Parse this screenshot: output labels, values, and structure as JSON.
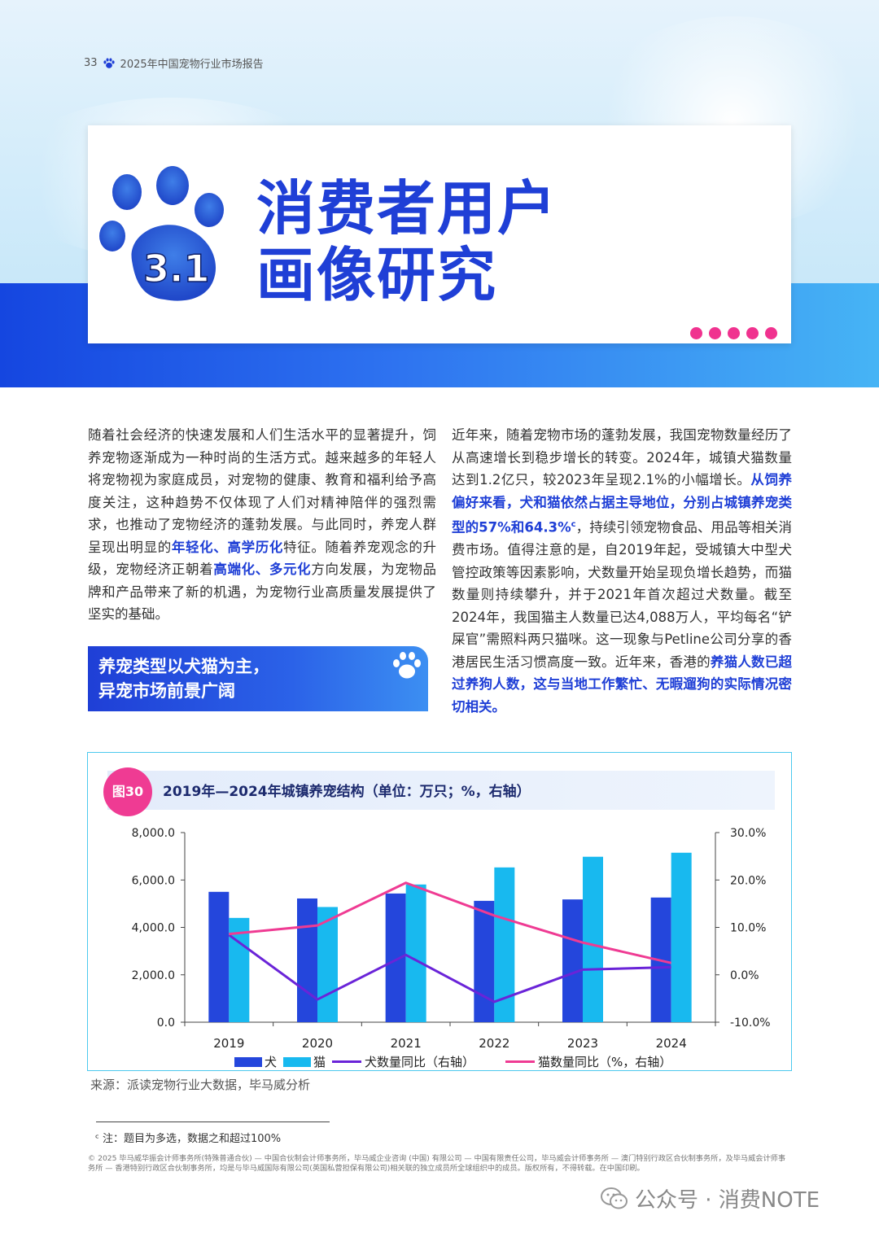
{
  "header": {
    "page_number": "33",
    "report_title": "2025年中国宠物行业市场报告"
  },
  "title": {
    "number": "3.1",
    "line1": "消费者用户",
    "line2": "画像研究"
  },
  "left_column": {
    "p1": "随着社会经济的快速发展和人们生活水平的显著提升，饲养宠物逐渐成为一种时尚的生活方式。越来越多的年轻人将宠物视为家庭成员，对宠物的健康、教育和福利给予高度关注，这种趋势不仅体现了人们对精神陪伴的强烈需求，也推动了宠物经济的蓬勃发展。与此同时，养宠人群呈现出明显的",
    "hl1": "年轻化、高学历化",
    "p2": "特征。随着养宠观念的升级，宠物经济正朝着",
    "hl2": "高端化、多元化",
    "p3": "方向发展，为宠物品牌和产品带来了新的机遇，为宠物行业高质量发展提供了坚实的基础。"
  },
  "section_box": {
    "line1": "养宠类型以犬猫为主，",
    "line2": "异宠市场前景广阔"
  },
  "right_column": {
    "p1": "近年来，随着宠物市场的蓬勃发展，我国宠物数量经历了从高速增长到稳步增长的转变。2024年，城镇犬猫数量达到1.2亿只，较2023年呈现2.1%的小幅增长。",
    "hl1": "从饲养偏好来看，犬和猫依然占据主导地位，分别占城镇养宠类型的57%和64.3%",
    "sup": "c",
    "p2": "，持续引领宠物食品、用品等相关消费市场。值得注意的是，自2019年起，受城镇大中型犬管控政策等因素影响，犬数量开始呈现负增长趋势，而猫数量则持续攀升，并于2021年首次超过犬数量。截至2024年，我国猫主人数量已达4,088万人，平均每名“铲屎官”需照料两只猫咪。这一现象与Petline公司分享的香港居民生活习惯高度一致。近年来，香港的",
    "hl2": "养猫人数已超过养狗人数，这与当地工作繁忙、无暇遛狗的实际情况密切相关。"
  },
  "figure": {
    "badge": "图30",
    "title": "2019年—2024年城镇养宠结构（单位：万只；%，右轴）"
  },
  "chart_data": {
    "type": "bar",
    "categories": [
      "2019",
      "2020",
      "2021",
      "2022",
      "2023",
      "2024"
    ],
    "series": [
      {
        "name": "犬",
        "kind": "bar",
        "axis": "left",
        "color": "#2446dc",
        "values": [
          5500,
          5220,
          5430,
          5120,
          5180,
          5260
        ]
      },
      {
        "name": "猫",
        "kind": "bar",
        "axis": "left",
        "color": "#18b9ef",
        "values": [
          4400,
          4860,
          5810,
          6530,
          6980,
          7150
        ]
      },
      {
        "name": "犬数量同比（右轴）",
        "kind": "line",
        "axis": "right",
        "color": "#6a24d8",
        "values": [
          8.4,
          -5.2,
          4.2,
          -5.7,
          1.1,
          1.6
        ]
      },
      {
        "name": "猫数量同比（%，右轴）",
        "kind": "line",
        "axis": "right",
        "color": "#ef3b93",
        "values": [
          8.6,
          10.4,
          19.4,
          12.5,
          6.8,
          2.5
        ]
      }
    ],
    "y_left": {
      "min": 0,
      "max": 8000,
      "ticks": [
        "8,000.0",
        "6,000.0",
        "4,000.0",
        "2,000.0",
        "0.0"
      ]
    },
    "y_right": {
      "min": -10,
      "max": 30,
      "ticks": [
        "30.0%",
        "20.0%",
        "10.0%",
        "0.0%",
        "-10.0%"
      ]
    },
    "legend": [
      "犬",
      "猫",
      "犬数量同比（右轴）",
      "猫数量同比（%，右轴）"
    ],
    "legend_position": "bottom",
    "grid": false
  },
  "source": "来源：派读宠物行业大数据，毕马威分析",
  "footnote": "ᶜ 注：题目为多选，数据之和超过100%",
  "legal": "© 2025 毕马威华振会计师事务所(特殊普通合伙) — 中国合伙制会计师事务所，毕马威企业咨询 (中国) 有限公司 — 中国有限责任公司，毕马威会计师事务所 — 澳门特别行政区合伙制事务所，及毕马威会计师事务所 — 香港特别行政区合伙制事务所，均是与毕马威国际有限公司(英国私营担保有限公司)相关联的独立成员所全球组织中的成员。版权所有，不得转载。在中国印刷。",
  "watermark": "公众号 · 消费NOTE",
  "colors": {
    "brand_blue": "#1f3fd6",
    "accent_pink": "#ef3b93",
    "dog": "#2446dc",
    "cat": "#18b9ef"
  }
}
